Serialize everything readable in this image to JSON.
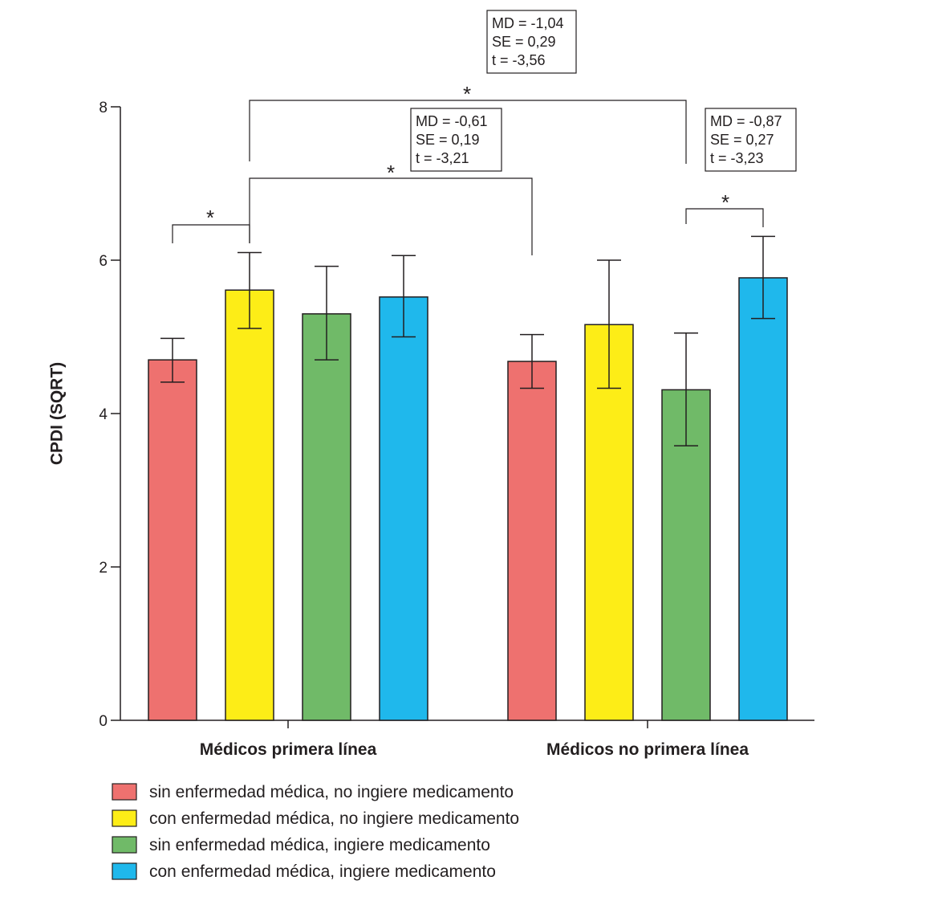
{
  "chart_data": {
    "type": "bar",
    "ylabel": "CPDI (SQRT)",
    "ylim": [
      0,
      8
    ],
    "yticks": [
      0,
      2,
      4,
      6,
      8
    ],
    "grid": false,
    "legend_position": "bottom-left",
    "categories": [
      "Médicos primera línea",
      "Médicos no primera línea"
    ],
    "series": [
      {
        "name": "sin enfermedad médica, no ingiere medicamento",
        "color": "#ee716f",
        "values": [
          4.7,
          4.68
        ],
        "error_low": [
          4.41,
          4.33
        ],
        "error_high": [
          4.98,
          5.03
        ]
      },
      {
        "name": "con enfermedad médica, no ingiere medicamento",
        "color": "#fded17",
        "values": [
          5.61,
          5.16
        ],
        "error_low": [
          5.11,
          4.33
        ],
        "error_high": [
          6.1,
          6.0
        ]
      },
      {
        "name": "sin enfermedad médica, ingiere medicamento",
        "color": "#70ba68",
        "values": [
          5.3,
          4.31
        ],
        "error_low": [
          4.7,
          3.58
        ],
        "error_high": [
          5.92,
          5.05
        ]
      },
      {
        "name": "con enfermedad médica, ingiere medicamento",
        "color": "#1fb8ec",
        "values": [
          5.52,
          5.77
        ],
        "error_low": [
          5.0,
          5.24
        ],
        "error_high": [
          6.06,
          6.31
        ]
      }
    ],
    "comparisons": [
      {
        "from": [
          0,
          0
        ],
        "to": [
          0,
          1
        ],
        "marker": "*",
        "stats": []
      },
      {
        "from": [
          0,
          1
        ],
        "to": [
          1,
          0
        ],
        "marker": "*",
        "stats": [
          "MD = -0,61",
          "SE = 0,19",
          "t = -3,21"
        ]
      },
      {
        "from": [
          0,
          1
        ],
        "to": [
          1,
          2
        ],
        "marker": "*",
        "stats": [
          "MD = -1,04",
          "SE = 0,29",
          "t = -3,56"
        ]
      },
      {
        "from": [
          1,
          2
        ],
        "to": [
          1,
          3
        ],
        "marker": "*",
        "stats": [
          "MD = -0,87",
          "SE = 0,27",
          "t = -3,23"
        ]
      }
    ]
  }
}
